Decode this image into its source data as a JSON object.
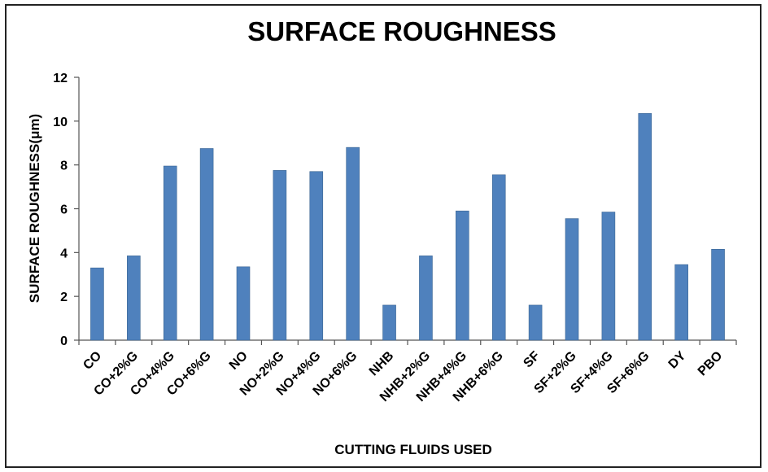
{
  "chart_data": {
    "type": "bar",
    "title": "SURFACE ROUGHNESS",
    "xlabel": "CUTTING FLUIDS USED",
    "ylabel": "SURFACE ROUGHNESS(μm)",
    "ylim": [
      0,
      12
    ],
    "yticks": [
      0,
      2,
      4,
      6,
      8,
      10,
      12
    ],
    "grid": false,
    "bar_color": "#4f81bd",
    "categories": [
      "CO",
      "CO+2%G",
      "CO+4%G",
      "CO+6%G",
      "NO",
      "NO+2%G",
      "NO+4%G",
      "NO+6%G",
      "NHB",
      "NHB+2%G",
      "NHB+4%G",
      "NHB+6%G",
      "SF",
      "SF+2%G",
      "SF+4%G",
      "SF+6%G",
      "DY",
      "PBO"
    ],
    "values": [
      3.3,
      3.85,
      7.95,
      8.75,
      3.35,
      7.75,
      7.7,
      8.8,
      1.6,
      3.85,
      5.9,
      7.55,
      1.6,
      5.55,
      5.85,
      10.35,
      3.45,
      4.15
    ]
  }
}
